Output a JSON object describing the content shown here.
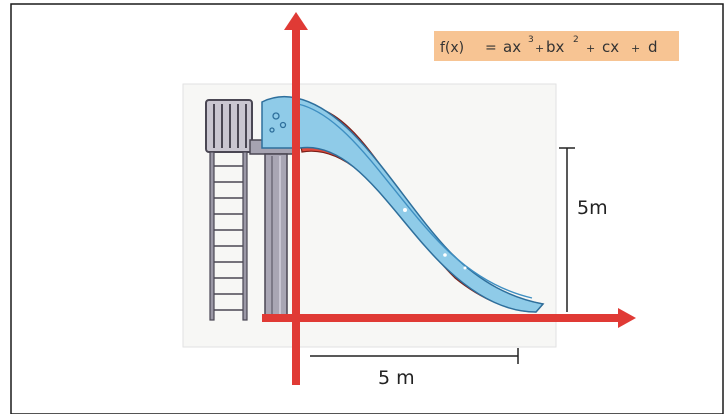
{
  "formula": {
    "lhs": "f(x)",
    "eq": "=",
    "t1": "ax",
    "p1": "3",
    "plus1": "+",
    "t2": "bx",
    "p2": "2",
    "plus2": "+",
    "t3": "cx",
    "plus3": "+",
    "t4": "d"
  },
  "height_label": "5m",
  "width_label": "5 m",
  "colors": {
    "axis": "#e03a35",
    "slide": "#8fcbe8",
    "slide_dark": "#3f8fc2",
    "formula_bg": "#f7c493",
    "card": "#f6f6f4",
    "metal": "#8d8a99"
  }
}
